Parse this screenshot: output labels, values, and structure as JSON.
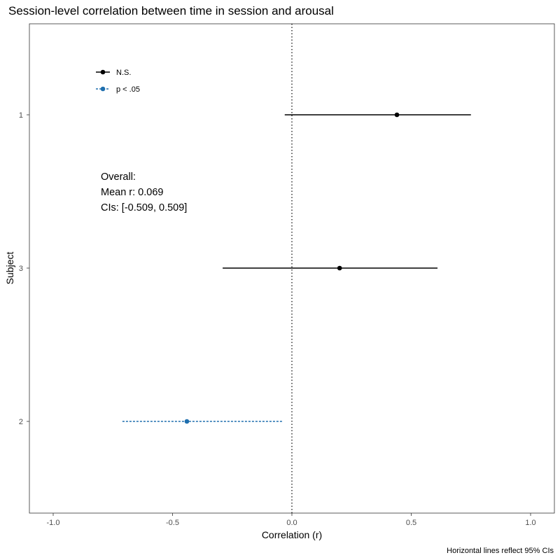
{
  "chart_data": {
    "type": "forest",
    "title": "Session-level correlation between time in session and arousal",
    "xlabel": "Correlation (r)",
    "ylabel": "Subject",
    "caption": "Horizontal lines reflect 95% CIs",
    "xlim": [
      -1.1,
      1.1
    ],
    "x_ticks": [
      -1.0,
      -0.5,
      0.0,
      0.5,
      1.0
    ],
    "x_tick_labels": [
      "-1.0",
      "-0.5",
      "0.0",
      "0.5",
      "1.0"
    ],
    "reference_line_x": 0.0,
    "grid": false,
    "categories": [
      "1",
      "3",
      "2"
    ],
    "points": [
      {
        "subject": "1",
        "r": 0.44,
        "ci_low": -0.03,
        "ci_high": 0.75,
        "group": "N.S."
      },
      {
        "subject": "3",
        "r": 0.2,
        "ci_low": -0.29,
        "ci_high": 0.61,
        "group": "N.S."
      },
      {
        "subject": "2",
        "r": -0.44,
        "ci_low": -0.71,
        "ci_high": -0.04,
        "group": "p < .05"
      }
    ],
    "legend": {
      "position": "top-left",
      "entries": [
        {
          "label": "N.S.",
          "color": "#000000",
          "dashed": false
        },
        {
          "label": "p < .05",
          "color": "#1f6fae",
          "dashed": true
        }
      ]
    },
    "annotation": {
      "lines": [
        "Overall:",
        "Mean r: 0.069",
        "CIs: [-0.509, 0.509]"
      ]
    }
  }
}
